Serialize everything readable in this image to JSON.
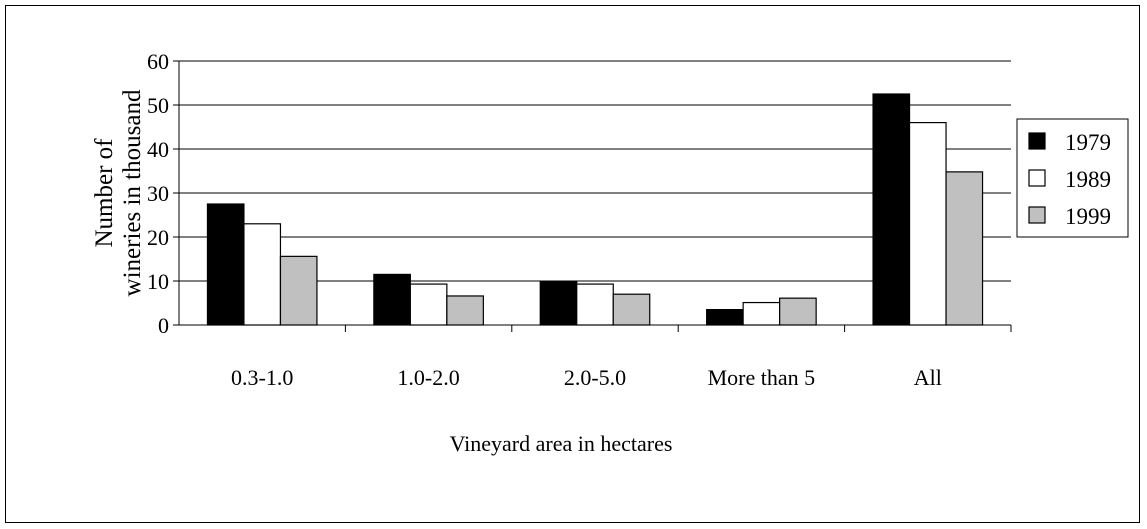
{
  "chart_data": {
    "type": "bar",
    "title": "",
    "xlabel": "Vineyard area in hectares",
    "ylabel_lines": [
      "Number of",
      "wineries in thousand"
    ],
    "categories": [
      "0.3-1.0",
      "1.0-2.0",
      "2.0-5.0",
      "More than 5",
      "All"
    ],
    "series": [
      {
        "name": "1979",
        "values": [
          27.5,
          11.5,
          9.8,
          3.5,
          52.5
        ],
        "color": "#000000"
      },
      {
        "name": "1989",
        "values": [
          23,
          9.3,
          9.3,
          5.1,
          46
        ],
        "color": "#ffffff"
      },
      {
        "name": "1999",
        "values": [
          15.6,
          6.6,
          7,
          6.1,
          34.8
        ],
        "color": "#c0c0c0"
      }
    ],
    "ylim": [
      0,
      60
    ],
    "yticks": [
      "0",
      "10",
      "20",
      "30",
      "40",
      "50",
      "60"
    ],
    "grid": true,
    "legend": "right"
  }
}
